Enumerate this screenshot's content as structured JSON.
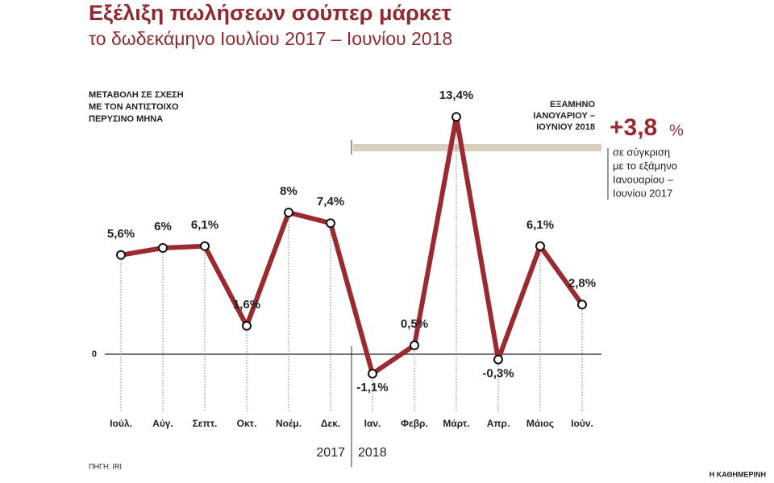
{
  "chart_data": {
    "type": "line",
    "title": "Εξέλιξη πωλήσεων σούπερ μάρκετ",
    "subtitle": "το δωδεκάμηνο Ιουλίου 2017 – Ιουνίου 2018",
    "y_note": [
      "ΜΕΤΑΒΟΛΗ ΣΕ ΣΧΕΣΗ",
      "ΜΕ ΤΟΝ ΑΝΤΙΣΤΟΙΧΟ",
      "ΠΕΡΥΣΙΝΟ ΜΗΝΑ"
    ],
    "categories": [
      "Ιούλ.",
      "Αύγ.",
      "Σεπτ.",
      "Οκτ.",
      "Νοέμ.",
      "Δεκ.",
      "Ιαν.",
      "Φεβρ.",
      "Μάρτ.",
      "Απρ.",
      "Μάιος",
      "Ιούν."
    ],
    "values": [
      5.6,
      6,
      6.1,
      1.6,
      8,
      7.4,
      -1.1,
      0.5,
      13.4,
      -0.3,
      6.1,
      2.8
    ],
    "value_labels": [
      "5,6%",
      "6%",
      "6,1%",
      "1,6%",
      "8%",
      "7,4%",
      "-1,1%",
      "0,5%",
      "13,4%",
      "-0,3%",
      "6,1%",
      "2,8%"
    ],
    "color": "#9b2a30",
    "ylim": [
      -3,
      14
    ],
    "yticks": [
      0
    ],
    "year_labels": [
      "2017",
      "2018"
    ],
    "period_note": [
      "ΕΞΑΜΗΝΟ",
      "ΙΑΝΟΥΑΡΙΟΥ –",
      "ΙΟΥΝΙΟΥ 2018"
    ],
    "summary": {
      "value": 3.8,
      "label": "+3,8",
      "unit": "%"
    },
    "comparison_note": [
      "σε σύγκριση",
      "με το εξάμηνο",
      "Ιανουαρίου –",
      "Ιουνίου 2017"
    ],
    "source": "ΠΗΓΗ: IRI",
    "credit": "Η ΚΑΘΗΜΕΡΙΝΗ"
  }
}
